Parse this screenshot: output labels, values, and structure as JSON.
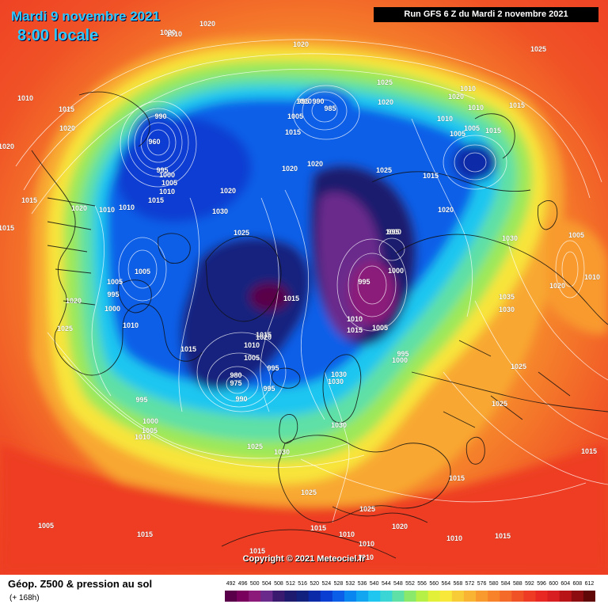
{
  "header": {
    "date": "Mardi 9 novembre 2021",
    "time": "8:00 locale",
    "run": "Run GFS 6 Z du Mardi 2 novembre 2021"
  },
  "copyright": "Copyright © 2021 Meteociel.fr",
  "footer": {
    "title": "Géop. Z500 & pression au sol",
    "subtitle": "(+ 168h)"
  },
  "scale": {
    "labels": [
      "492",
      "496",
      "500",
      "504",
      "508",
      "512",
      "516",
      "520",
      "524",
      "528",
      "532",
      "536",
      "540",
      "544",
      "548",
      "552",
      "556",
      "560",
      "564",
      "568",
      "572",
      "576",
      "580",
      "584",
      "588",
      "592",
      "596",
      "600",
      "604",
      "608",
      "612"
    ],
    "colors": [
      "#5a004a",
      "#7a005e",
      "#8c1a7a",
      "#6a2a8c",
      "#3a1a6e",
      "#1e1a6e",
      "#12207e",
      "#0a2aa8",
      "#0a3ed2",
      "#0a5ee8",
      "#0a86f0",
      "#12a6f0",
      "#1ec6f0",
      "#3ad6d6",
      "#5ee0a6",
      "#8ae86a",
      "#b6f046",
      "#e2f03a",
      "#f8e83a",
      "#f8cc36",
      "#f8b432",
      "#f89a2e",
      "#f8822a",
      "#f46a28",
      "#f05226",
      "#ee3c24",
      "#e82822",
      "#d81e20",
      "#b81418",
      "#8c0c10",
      "#600808"
    ]
  },
  "pressure_labels": [
    {
      "text": "1020"
    },
    {
      "text": "1020"
    },
    {
      "text": "1010"
    },
    {
      "text": "1015"
    },
    {
      "text": "1020"
    },
    {
      "text": "1020"
    },
    {
      "text": "1010"
    },
    {
      "text": "990"
    },
    {
      "text": "960"
    },
    {
      "text": "995"
    },
    {
      "text": "1000"
    },
    {
      "text": "1005"
    },
    {
      "text": "1010"
    },
    {
      "text": "1015"
    },
    {
      "text": "1020"
    },
    {
      "text": "1015"
    },
    {
      "text": "1020"
    },
    {
      "text": "1010"
    },
    {
      "text": "1010"
    },
    {
      "text": "1015"
    },
    {
      "text": "1020"
    },
    {
      "text": "1030"
    },
    {
      "text": "1025"
    },
    {
      "text": "1005"
    },
    {
      "text": "1005"
    },
    {
      "text": "995"
    },
    {
      "text": "1000"
    },
    {
      "text": "1020"
    },
    {
      "text": "1025"
    },
    {
      "text": "1010"
    },
    {
      "text": "1015"
    },
    {
      "text": "995"
    },
    {
      "text": "1000"
    },
    {
      "text": "1005"
    },
    {
      "text": "1010"
    },
    {
      "text": "1010"
    },
    {
      "text": "995"
    },
    {
      "text": "990"
    },
    {
      "text": "985"
    },
    {
      "text": "1005"
    },
    {
      "text": "1015"
    },
    {
      "text": "1020"
    },
    {
      "text": "1020"
    },
    {
      "text": "1025"
    },
    {
      "text": "1020"
    },
    {
      "text": "1025"
    },
    {
      "text": "1015"
    },
    {
      "text": "1010"
    },
    {
      "text": "1020"
    },
    {
      "text": "1010"
    },
    {
      "text": "1005"
    },
    {
      "text": "1005"
    },
    {
      "text": "1000"
    },
    {
      "text": "1015"
    },
    {
      "text": "1015"
    },
    {
      "text": "1010"
    },
    {
      "text": "1020"
    },
    {
      "text": "1025"
    },
    {
      "text": "1030"
    },
    {
      "text": "995"
    },
    {
      "text": "995"
    },
    {
      "text": "1000"
    },
    {
      "text": "1015"
    },
    {
      "text": "1010"
    },
    {
      "text": "1015"
    },
    {
      "text": "1005"
    },
    {
      "text": "995"
    },
    {
      "text": "1000"
    },
    {
      "text": "1015"
    },
    {
      "text": "1020"
    },
    {
      "text": "1010"
    },
    {
      "text": "1005"
    },
    {
      "text": "995"
    },
    {
      "text": "980"
    },
    {
      "text": "975"
    },
    {
      "text": "990"
    },
    {
      "text": "995"
    },
    {
      "text": "1030"
    },
    {
      "text": "1030"
    },
    {
      "text": "1030"
    },
    {
      "text": "1035"
    },
    {
      "text": "1030"
    },
    {
      "text": "1025"
    },
    {
      "text": "1025"
    },
    {
      "text": "1020"
    },
    {
      "text": "1005"
    },
    {
      "text": "1010"
    },
    {
      "text": "1015"
    },
    {
      "text": "1015"
    },
    {
      "text": "1025"
    },
    {
      "text": "1030"
    },
    {
      "text": "1025"
    },
    {
      "text": "1025"
    },
    {
      "text": "1020"
    },
    {
      "text": "1010"
    },
    {
      "text": "1015"
    },
    {
      "text": "1005"
    },
    {
      "text": "1015"
    },
    {
      "text": "1010"
    },
    {
      "text": "1015"
    },
    {
      "text": "1010"
    },
    {
      "text": "1010"
    },
    {
      "text": "1015"
    }
  ]
}
